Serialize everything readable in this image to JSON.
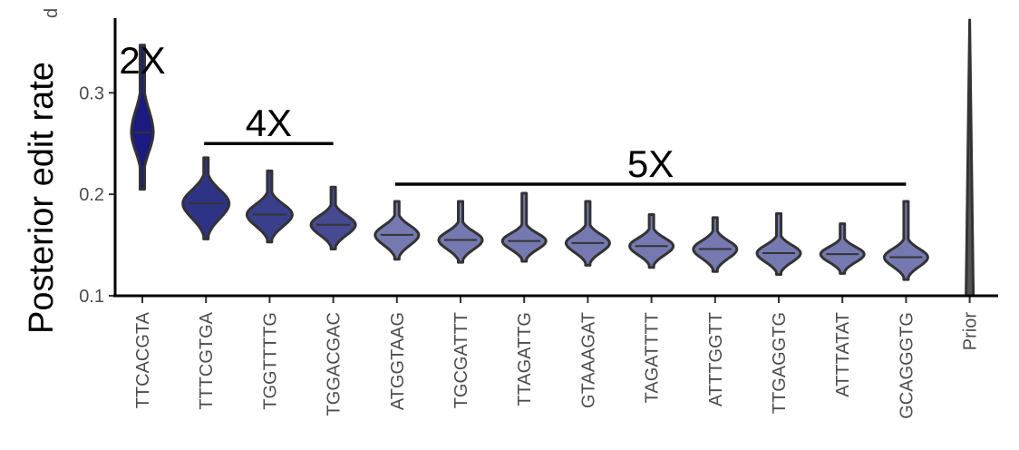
{
  "chart_data": {
    "type": "violin",
    "ylabel": "Posterior edit rate",
    "ylabel_extra": "d",
    "ylim": [
      0.1,
      0.37
    ],
    "yticks": [
      "0.1",
      "0.2",
      "0.3"
    ],
    "categories": [
      "TTCACGTA",
      "TTTCGTGA",
      "TGGTTTTG",
      "TGGACGAC",
      "ATGGTAAG",
      "TGCGATTT",
      "TTAGATTG",
      "GTAAAGAT",
      "TAGATTTT",
      "ATTTGGTT",
      "TTGAGGTG",
      "ATTTATAT",
      "GCAGGGTG",
      "Prior"
    ],
    "violins": [
      {
        "median": 0.261,
        "min": 0.205,
        "max": 0.347,
        "color": "#1a1a80"
      },
      {
        "median": 0.191,
        "min": 0.156,
        "max": 0.236,
        "color": "#2e3385"
      },
      {
        "median": 0.18,
        "min": 0.153,
        "max": 0.223,
        "color": "#3a3f8c"
      },
      {
        "median": 0.17,
        "min": 0.146,
        "max": 0.207,
        "color": "#454a91"
      },
      {
        "median": 0.16,
        "min": 0.136,
        "max": 0.193,
        "color": "#7579b0"
      },
      {
        "median": 0.155,
        "min": 0.133,
        "max": 0.193,
        "color": "#7579b0"
      },
      {
        "median": 0.154,
        "min": 0.134,
        "max": 0.201,
        "color": "#7579b0"
      },
      {
        "median": 0.152,
        "min": 0.13,
        "max": 0.193,
        "color": "#7579b0"
      },
      {
        "median": 0.149,
        "min": 0.128,
        "max": 0.18,
        "color": "#7579b0"
      },
      {
        "median": 0.146,
        "min": 0.124,
        "max": 0.177,
        "color": "#7579b0"
      },
      {
        "median": 0.142,
        "min": 0.121,
        "max": 0.181,
        "color": "#7579b0"
      },
      {
        "median": 0.141,
        "min": 0.122,
        "max": 0.171,
        "color": "#7579b0"
      },
      {
        "median": 0.138,
        "min": 0.116,
        "max": 0.193,
        "color": "#7579b0"
      }
    ],
    "annotations": [
      {
        "text": "2X",
        "from": 0,
        "to": 0,
        "y": 0.346,
        "bar": false
      },
      {
        "text": "4X",
        "from": 1,
        "to": 3,
        "y": 0.25,
        "bar": true
      },
      {
        "text": "5X",
        "from": 4,
        "to": 12,
        "y": 0.21,
        "bar": true
      }
    ],
    "prior": {
      "index": 13,
      "min": 0.1,
      "max": 0.37
    },
    "grid": false,
    "legend": "none"
  }
}
